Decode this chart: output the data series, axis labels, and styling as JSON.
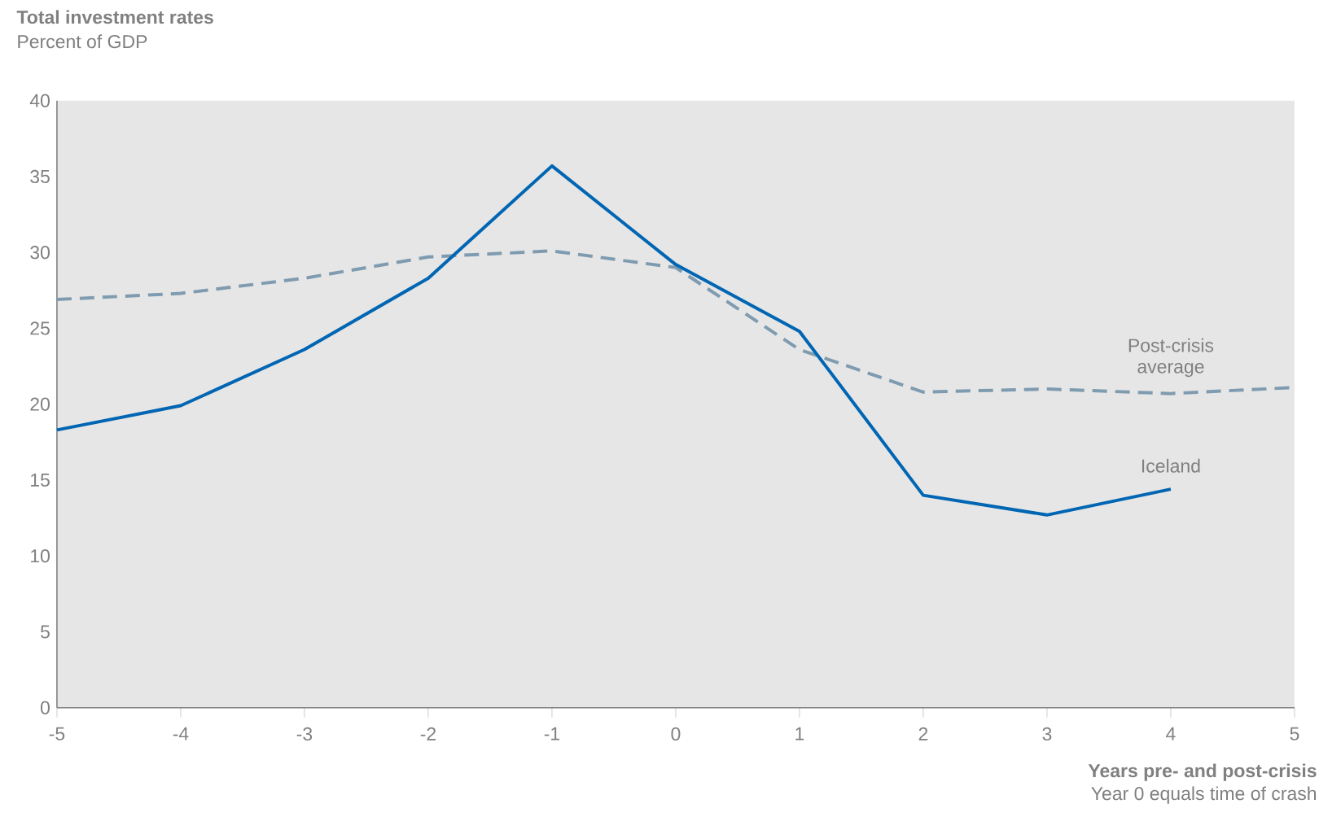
{
  "chart_data": {
    "type": "line",
    "title": "Total investment rates",
    "subtitle": "Percent of GDP",
    "xlabel": "Years pre- and post-crisis",
    "annotations": [
      "Year 0 equals time of crash"
    ],
    "series": [
      {
        "name": "Post-crisis average",
        "color": "#7f9bb0",
        "line_style": "dashed",
        "x": [
          -5,
          -4,
          -3,
          -2,
          -1,
          0,
          1,
          2,
          3,
          4,
          5
        ],
        "values": [
          26.9,
          27.3,
          28.3,
          29.7,
          30.1,
          29.0,
          23.6,
          20.8,
          21.0,
          20.7,
          21.1
        ]
      },
      {
        "name": "Iceland",
        "color": "#0066b3",
        "line_style": "solid",
        "x": [
          -5,
          -4,
          -3,
          -2,
          -1,
          0,
          1,
          2,
          3,
          4
        ],
        "values": [
          18.3,
          19.9,
          23.6,
          28.3,
          35.7,
          29.2,
          24.8,
          14.0,
          12.7,
          14.4
        ]
      }
    ],
    "xlim": [
      -5,
      5
    ],
    "xticks": [
      -5,
      -4,
      -3,
      -2,
      -1,
      0,
      1,
      2,
      3,
      4,
      5
    ],
    "ylim": [
      0,
      40
    ],
    "yticks": [
      0,
      5,
      10,
      15,
      20,
      25,
      30,
      35,
      40
    ],
    "grid": false,
    "legend": false,
    "marker": "none"
  }
}
